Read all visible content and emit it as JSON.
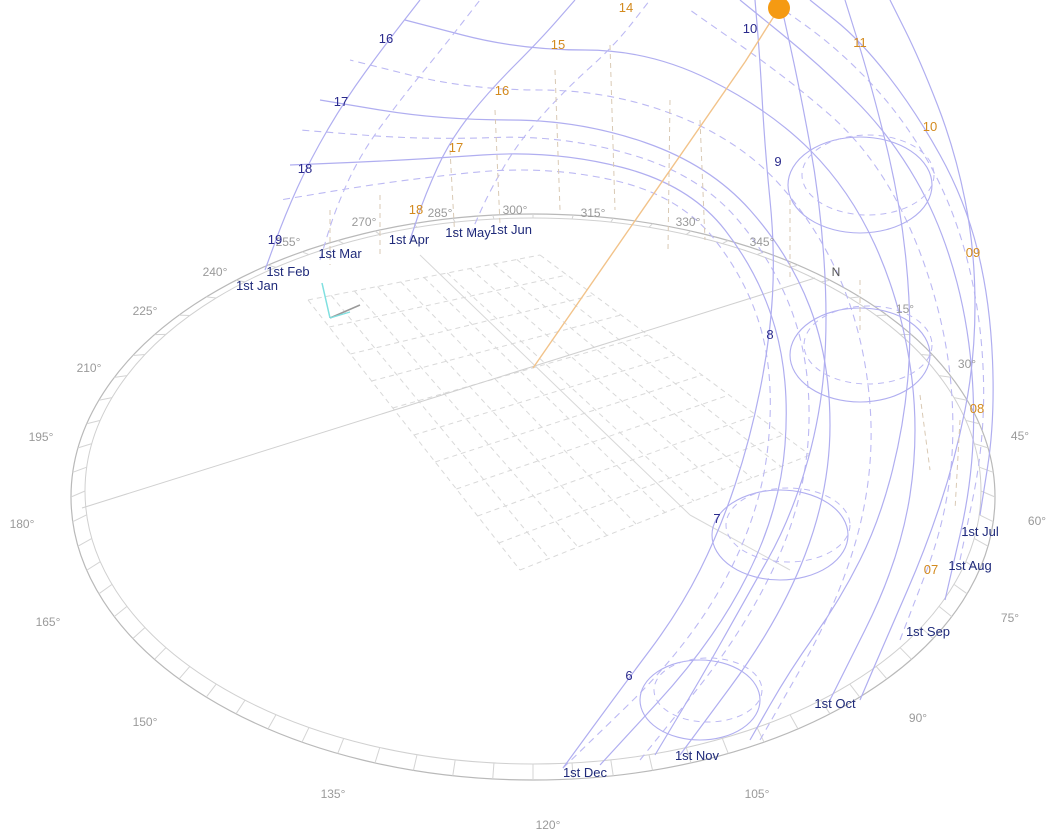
{
  "colors": {
    "path_line": "#b0aef0",
    "path_dash": "#bcb9f3",
    "compass": "#b9b9b9",
    "ground_dash": "#d9d9d9",
    "sun": "#f59a12",
    "sun_ray": "#f2c38a",
    "hour_blue": "#2a2a8c",
    "hour_orange": "#d38a1e",
    "date_label": "#1f2a7a",
    "axis_label": "#9a9a9a",
    "cursor_arrow": "#7fe0e0"
  },
  "compass": {
    "north_label": "N",
    "azimuth_labels": [
      "15°",
      "30°",
      "45°",
      "60°",
      "75°",
      "90°",
      "105°",
      "120°",
      "135°",
      "150°",
      "165°",
      "180°",
      "195°",
      "210°",
      "225°",
      "240°",
      "255°",
      "270°",
      "285°",
      "300°",
      "315°",
      "330°",
      "345°"
    ]
  },
  "hour_labels_blue": [
    "6",
    "7",
    "8",
    "9",
    "10",
    "16",
    "17",
    "18",
    "19"
  ],
  "hour_labels_orange": [
    "07",
    "08",
    "09",
    "10",
    "11",
    "14",
    "15",
    "16",
    "17",
    "18"
  ],
  "date_labels": [
    "1st Jan",
    "1st Feb",
    "1st Mar",
    "1st Apr",
    "1st May",
    "1st Jun",
    "1st Jul",
    "1st Aug",
    "1st Sep",
    "1st Oct",
    "1st Nov",
    "1st Dec"
  ],
  "icons": {
    "sun": "sun-icon",
    "cursor": "axis-gizmo-icon"
  }
}
